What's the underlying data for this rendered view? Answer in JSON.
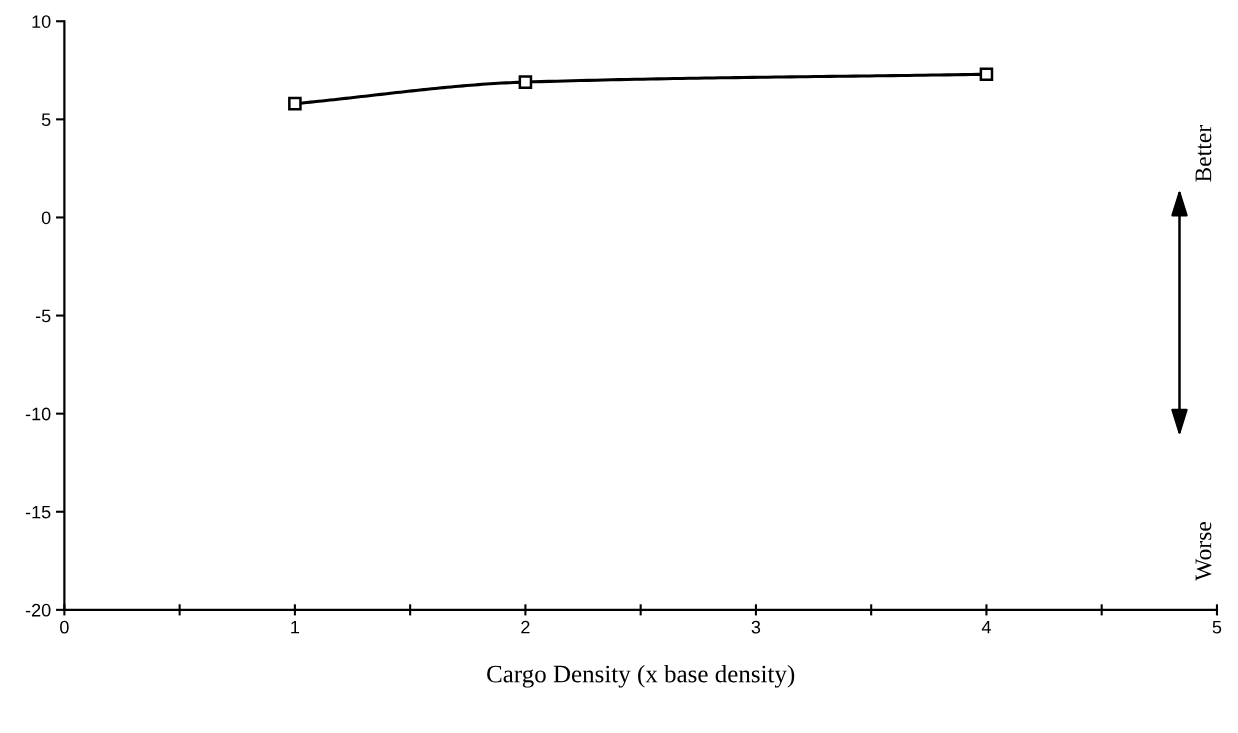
{
  "chart_data": {
    "type": "line",
    "xlabel": "Cargo Density (x base density)",
    "x": [
      1,
      2,
      4
    ],
    "series": [
      {
        "color": "#000000",
        "values": [
          5.8,
          6.9,
          7.3
        ]
      }
    ],
    "marker": "square",
    "line_style": "solid",
    "grid": false,
    "legend": false,
    "xlim": [
      0,
      5
    ],
    "ylim": [
      -20,
      10
    ],
    "xticks": [
      0,
      {
        "value": 0.5,
        "label": null
      },
      1,
      {
        "value": 1.5,
        "label": null
      },
      2,
      {
        "value": 2.5,
        "label": null
      },
      3,
      {
        "value": 3.5,
        "label": null
      },
      4,
      {
        "value": 4.5,
        "label": null
      },
      5
    ],
    "yticks": [
      -20,
      -15,
      -10,
      -5,
      0,
      5,
      10
    ],
    "annotations": [
      "Better",
      "Worse"
    ]
  }
}
